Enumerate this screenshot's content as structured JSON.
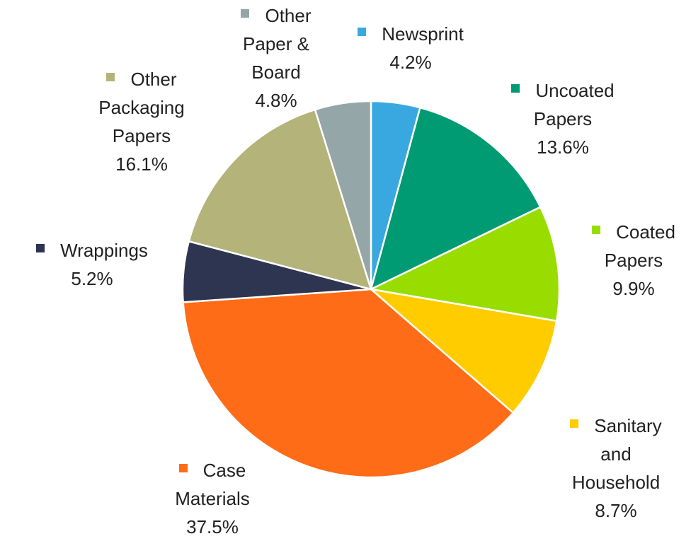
{
  "chart_data": {
    "type": "pie",
    "categories": [
      "Newsprint",
      "Uncoated Papers",
      "Coated Papers",
      "Sanitary and Household",
      "Case Materials",
      "Wrappings",
      "Other Packaging Papers",
      "Other Paper & Board"
    ],
    "values": [
      4.2,
      13.6,
      9.9,
      8.7,
      37.5,
      5.2,
      16.1,
      4.8
    ],
    "value_labels": [
      "4.2%",
      "13.6%",
      "9.9%",
      "8.7%",
      "37.5%",
      "5.2%",
      "16.1%",
      "4.8%"
    ],
    "colors": [
      "#3aa8e0",
      "#009a73",
      "#99dd00",
      "#ffcc00",
      "#ff6c17",
      "#2e3550",
      "#b3b37a",
      "#94a6a8"
    ]
  }
}
